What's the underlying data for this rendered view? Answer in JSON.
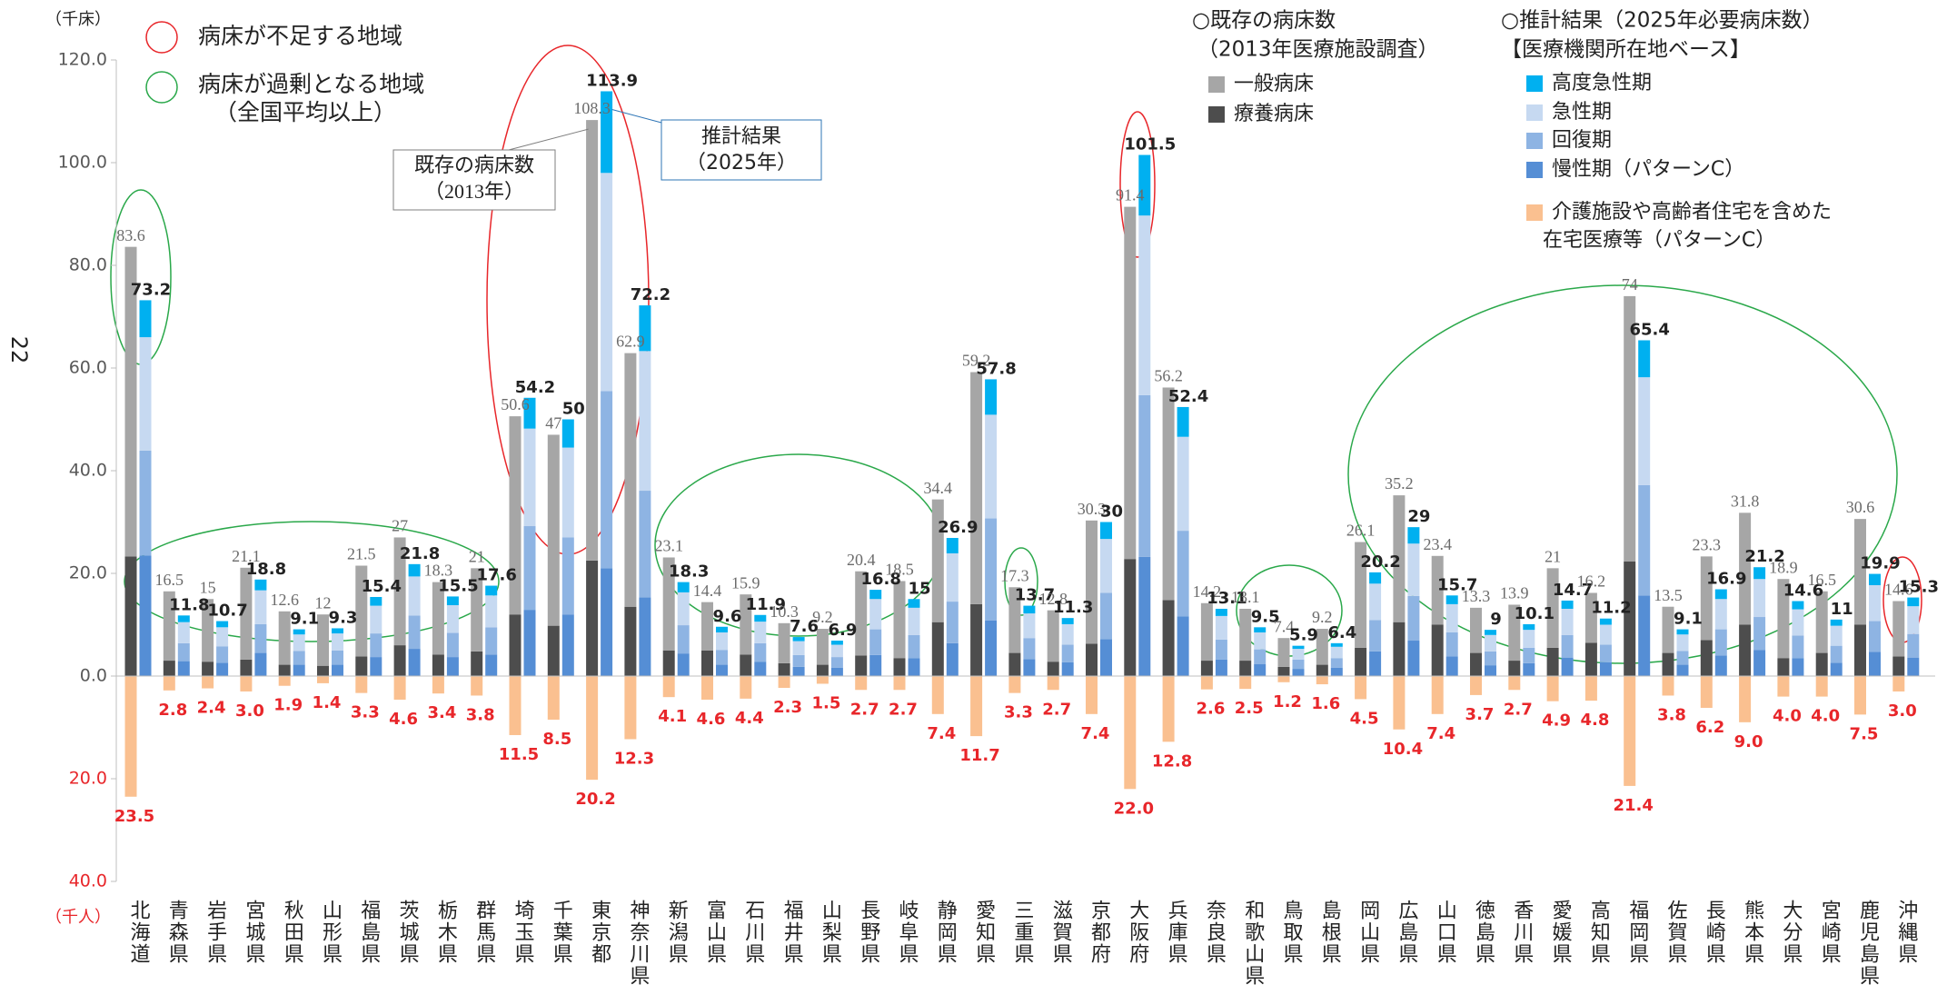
{
  "page_number": "22",
  "chart_data": {
    "type": "bar",
    "stacked": true,
    "unit_label": "（千床）",
    "unit_label_lower": "（千人）",
    "categories": [
      "北海道",
      "青森県",
      "岩手県",
      "宮城県",
      "秋田県",
      "山形県",
      "福島県",
      "茨城県",
      "栃木県",
      "群馬県",
      "埼玉県",
      "千葉県",
      "東京都",
      "神奈川県",
      "新潟県",
      "富山県",
      "石川県",
      "福井県",
      "山梨県",
      "長野県",
      "岐阜県",
      "静岡県",
      "愛知県",
      "三重県",
      "滋賀県",
      "京都府",
      "大阪府",
      "兵庫県",
      "奈良県",
      "和歌山県",
      "鳥取県",
      "島根県",
      "岡山県",
      "広島県",
      "山口県",
      "徳島県",
      "香川県",
      "愛媛県",
      "高知県",
      "福岡県",
      "佐賀県",
      "長崎県",
      "熊本県",
      "大分県",
      "宮崎県",
      "鹿児島県",
      "沖縄県"
    ],
    "ylim": [
      -40,
      120
    ],
    "yticks": [
      {
        "value": -40,
        "label": "40.0"
      },
      {
        "value": -20,
        "label": "20.0"
      },
      {
        "value": 0,
        "label": "0.0"
      },
      {
        "value": 20,
        "label": "20.0"
      },
      {
        "value": 40,
        "label": "40.0"
      },
      {
        "value": 60,
        "label": "60.0"
      },
      {
        "value": 80,
        "label": "80.0"
      },
      {
        "value": 100,
        "label": "100.0"
      },
      {
        "value": 120,
        "label": "120.0"
      }
    ],
    "legend_headers": {
      "existing": [
        "○既存の病床数",
        "（2013年医療施設調査）"
      ],
      "estimate": [
        "○推計結果（2025年必要病床数）",
        "【医療機関所在地ベース】"
      ]
    },
    "region_legend": {
      "shortage": "病床が不足する地域",
      "surplus": [
        "病床が過剰となる地域",
        "（全国平均以上）"
      ],
      "shortage_color": "#e8262a",
      "surplus_color": "#2aa84a"
    },
    "callouts": {
      "existing": [
        "既存の病床数",
        "（2013年）"
      ],
      "estimate": [
        "推計結果",
        "（2025年）"
      ]
    },
    "series": [
      {
        "name": "療養病床",
        "stack": "existing",
        "color": "#4d4d4d",
        "values": [
          23.3,
          3.0,
          2.8,
          3.2,
          2.2,
          2.0,
          3.8,
          6.0,
          4.2,
          4.8,
          12.0,
          9.8,
          22.5,
          13.5,
          5.0,
          5.0,
          4.2,
          2.5,
          2.2,
          4.0,
          3.5,
          10.5,
          14.0,
          4.5,
          2.8,
          6.3,
          22.8,
          14.8,
          3.0,
          3.0,
          1.8,
          2.2,
          5.5,
          10.5,
          10.0,
          4.5,
          3.0,
          5.5,
          6.5,
          22.3,
          4.5,
          7.0,
          10.0,
          3.5,
          4.5,
          10.0,
          3.8
        ]
      },
      {
        "name": "一般病床",
        "stack": "existing",
        "color": "#a6a6a6",
        "values": [
          60.3,
          13.5,
          12.2,
          17.9,
          10.4,
          10.0,
          17.7,
          21.0,
          14.1,
          16.2,
          38.6,
          37.2,
          85.8,
          49.4,
          18.1,
          9.4,
          11.7,
          7.8,
          7.0,
          16.4,
          15.0,
          23.9,
          45.2,
          12.8,
          10.0,
          24.0,
          68.6,
          41.4,
          11.2,
          10.1,
          5.6,
          7.0,
          20.6,
          24.7,
          13.4,
          8.8,
          10.9,
          15.5,
          9.7,
          51.7,
          9.0,
          16.3,
          21.8,
          15.4,
          12.0,
          20.6,
          10.8
        ]
      },
      {
        "name": "慢性期（パターンC）",
        "stack": "estimate",
        "color": "#558ed5",
        "values": [
          23.5,
          2.9,
          2.6,
          4.5,
          2.2,
          2.2,
          3.7,
          5.3,
          3.7,
          4.2,
          12.9,
          12.0,
          21.0,
          15.3,
          4.4,
          2.2,
          2.8,
          1.8,
          1.6,
          4.1,
          3.5,
          6.4,
          10.8,
          3.3,
          2.7,
          7.2,
          23.2,
          11.6,
          3.2,
          2.3,
          1.4,
          1.6,
          4.8,
          6.9,
          3.8,
          2.1,
          2.5,
          3.6,
          2.7,
          15.7,
          2.2,
          4.0,
          5.1,
          3.5,
          2.6,
          4.7,
          3.6
        ]
      },
      {
        "name": "回復期",
        "stack": "estimate",
        "color": "#8eb4e3",
        "values": [
          20.4,
          3.5,
          3.2,
          5.6,
          2.7,
          2.8,
          4.6,
          6.5,
          4.7,
          5.3,
          16.3,
          15.0,
          34.5,
          20.8,
          5.5,
          2.9,
          3.6,
          2.3,
          2.1,
          5.0,
          4.5,
          8.1,
          19.9,
          4.1,
          3.4,
          9.0,
          31.5,
          16.7,
          3.9,
          2.9,
          1.8,
          1.9,
          6.1,
          8.7,
          4.7,
          2.7,
          3.0,
          4.4,
          3.4,
          21.5,
          2.7,
          5.1,
          6.4,
          4.4,
          3.3,
          6.0,
          4.6
        ]
      },
      {
        "name": "急性期",
        "stack": "estimate",
        "color": "#c6d9f1",
        "values": [
          22.1,
          4.1,
          3.7,
          6.6,
          3.2,
          3.3,
          5.4,
          7.6,
          5.4,
          6.2,
          19.0,
          17.5,
          42.5,
          27.2,
          6.4,
          3.4,
          4.2,
          2.7,
          2.4,
          5.9,
          5.3,
          9.4,
          20.2,
          4.8,
          4.0,
          10.5,
          35.0,
          18.3,
          4.6,
          3.3,
          2.1,
          2.2,
          7.1,
          10.2,
          5.5,
          3.2,
          3.5,
          5.1,
          3.9,
          21.0,
          3.2,
          5.9,
          7.4,
          5.1,
          3.9,
          7.0,
          5.4
        ]
      },
      {
        "name": "高度急性期",
        "stack": "estimate",
        "color": "#00b0f0",
        "values": [
          7.2,
          1.3,
          1.2,
          2.1,
          1.0,
          1.0,
          1.7,
          2.4,
          1.7,
          1.9,
          6.0,
          5.5,
          15.9,
          8.9,
          2.0,
          1.1,
          1.3,
          0.8,
          0.8,
          1.8,
          1.7,
          3.0,
          6.9,
          1.5,
          1.2,
          3.3,
          11.8,
          5.8,
          1.4,
          1.0,
          0.6,
          0.7,
          2.2,
          3.2,
          1.7,
          1.0,
          1.1,
          1.6,
          1.2,
          7.2,
          1.0,
          1.9,
          2.3,
          1.6,
          1.2,
          2.2,
          1.7
        ]
      },
      {
        "name": [
          "介護施設や高齢者住宅を含めた",
          "在宅医療等（パターンC）"
        ],
        "stack": "home",
        "color": "#fac090",
        "label_color": "#e8262a",
        "values": [
          -23.5,
          -2.8,
          -2.4,
          -3.0,
          -1.9,
          -1.4,
          -3.3,
          -4.6,
          -3.4,
          -3.8,
          -11.5,
          -8.5,
          -20.2,
          -12.3,
          -4.1,
          -4.6,
          -4.4,
          -2.3,
          -1.5,
          -2.7,
          -2.7,
          -7.4,
          -11.7,
          -3.3,
          -2.7,
          -7.4,
          -22.0,
          -12.8,
          -2.6,
          -2.5,
          -1.2,
          -1.6,
          -4.5,
          -10.4,
          -7.4,
          -3.7,
          -2.7,
          -4.9,
          -4.8,
          -21.4,
          -3.8,
          -6.2,
          -9.0,
          -4.0,
          -4.0,
          -7.5,
          -3.0
        ],
        "value_labels": [
          "23.5",
          "2.8",
          "2.4",
          "3.0",
          "1.9",
          "1.4",
          "3.3",
          "4.6",
          "3.4",
          "3.8",
          "11.5",
          "8.5",
          "20.2",
          "12.3",
          "4.1",
          "4.6",
          "4.4",
          "2.3",
          "1.5",
          "2.7",
          "2.7",
          "7.4",
          "11.7",
          "3.3",
          "2.7",
          "7.4",
          "22.0",
          "12.8",
          "2.6",
          "2.5",
          "1.2",
          "1.6",
          "4.5",
          "10.4",
          "7.4",
          "3.7",
          "2.7",
          "4.9",
          "4.8",
          "21.4",
          "3.8",
          "6.2",
          "9.0",
          "4.0",
          "4.0",
          "7.5",
          "3.0"
        ]
      }
    ],
    "existing_totals": [
      83.6,
      16.5,
      15.0,
      21.1,
      12.6,
      12.0,
      21.5,
      27.0,
      18.3,
      21.0,
      50.6,
      47.0,
      108.3,
      62.9,
      23.1,
      14.4,
      15.9,
      10.3,
      9.2,
      20.4,
      18.5,
      34.4,
      59.2,
      17.3,
      12.8,
      30.3,
      91.4,
      56.2,
      14.2,
      13.1,
      7.4,
      9.2,
      26.1,
      35.2,
      23.4,
      13.3,
      13.9,
      21.0,
      16.2,
      74.0,
      13.5,
      23.3,
      31.8,
      18.9,
      16.5,
      30.6,
      14.6
    ],
    "estimate_totals": [
      73.2,
      11.8,
      10.7,
      18.8,
      9.1,
      9.3,
      15.4,
      21.8,
      15.5,
      17.6,
      54.2,
      50.0,
      113.9,
      72.2,
      18.3,
      9.6,
      11.9,
      7.6,
      6.9,
      16.8,
      15.0,
      26.9,
      57.8,
      13.7,
      11.3,
      30.0,
      101.5,
      52.4,
      13.1,
      9.5,
      5.9,
      6.4,
      20.2,
      29.0,
      15.7,
      9.0,
      10.1,
      14.7,
      11.2,
      65.4,
      9.1,
      16.9,
      21.2,
      14.6,
      11.0,
      19.9,
      15.3
    ]
  }
}
